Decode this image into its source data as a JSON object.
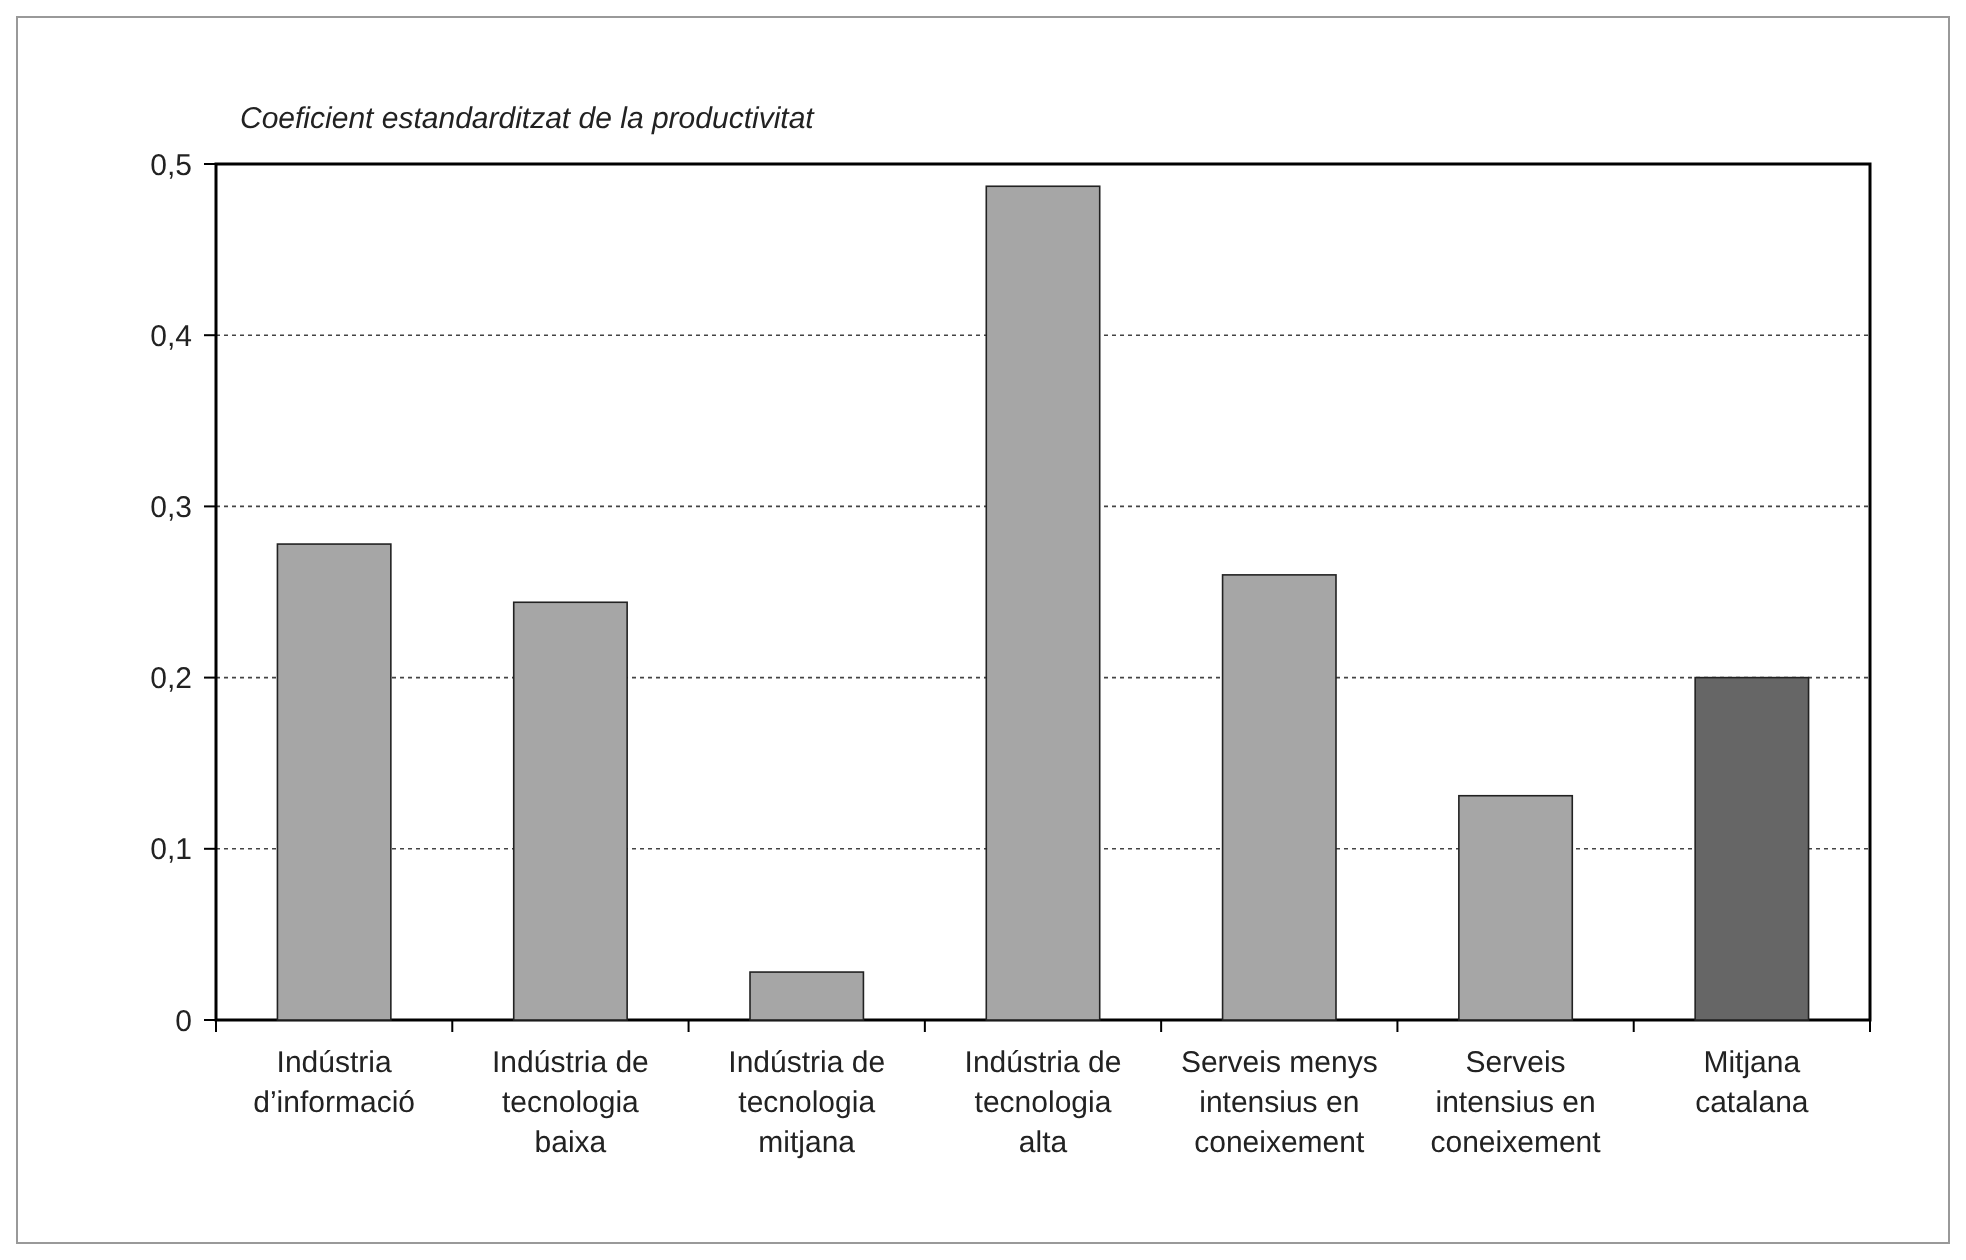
{
  "chart_data": {
    "type": "bar",
    "ylabel": "Coeficient estandarditzat de la productivitat",
    "categories": [
      "Indústria d’informació",
      "Indústria de tecnologia baixa",
      "Indústria de tecnologia mitjana",
      "Indústria de tecnologia alta",
      "Serveis menys intensius en coneixement",
      "Serveis intensius en coneixement",
      "Mitjana catalana"
    ],
    "values": [
      0.278,
      0.244,
      0.028,
      0.487,
      0.26,
      0.131,
      0.2
    ],
    "colors": [
      "#a6a6a6",
      "#a6a6a6",
      "#a6a6a6",
      "#a6a6a6",
      "#a6a6a6",
      "#a6a6a6",
      "#666666"
    ],
    "ylim": [
      0,
      0.5
    ],
    "yticks": [
      {
        "value": 0,
        "label": "0"
      },
      {
        "value": 0.1,
        "label": "0,1"
      },
      {
        "value": 0.2,
        "label": "0,2"
      },
      {
        "value": 0.3,
        "label": "0,3"
      },
      {
        "value": 0.4,
        "label": "0,4"
      },
      {
        "value": 0.5,
        "label": "0,5"
      }
    ],
    "grid": "y"
  }
}
